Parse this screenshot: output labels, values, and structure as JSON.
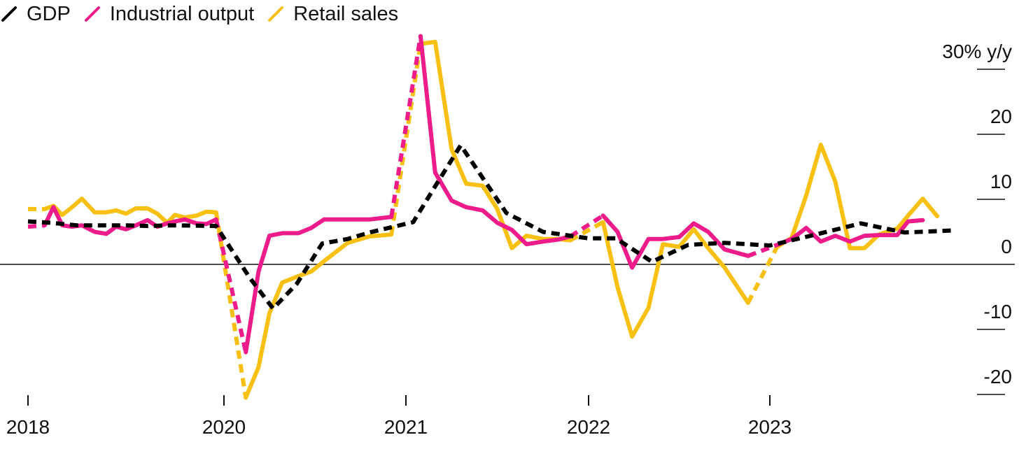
{
  "legend": {
    "items": [
      {
        "label": "GDP",
        "color": "#000000"
      },
      {
        "label": "Industrial output",
        "color": "#ee1c8b"
      },
      {
        "label": "Retail sales",
        "color": "#f7c012"
      }
    ]
  },
  "chart_data": {
    "type": "line",
    "title": "",
    "xlabel": "",
    "ylabel": "",
    "y_unit_label": "30% y/y",
    "yticks": [
      30,
      20,
      10,
      0,
      -10,
      -20
    ],
    "ytick_labels": [
      "30% y/y",
      "20",
      "10",
      "0",
      "-10",
      "-20"
    ],
    "ylim": [
      -22,
      32
    ],
    "xlim": [
      2018.0,
      2024.1
    ],
    "x_axis_note": "axis is compressed: 2018 to 2020 spans the same width as one year",
    "xticks": [
      {
        "label": "2018",
        "x": 2018.0
      },
      {
        "label": "2020",
        "x": 2020.0
      },
      {
        "label": "2021",
        "x": 2021.0
      },
      {
        "label": "2022",
        "x": 2022.0
      },
      {
        "label": "2023",
        "x": 2023.0
      }
    ],
    "legend_position": "top-left",
    "grid": false,
    "series": [
      {
        "name": "GDP",
        "color": "#000000",
        "style": "dashed",
        "points": [
          [
            2018.0,
            6.6
          ],
          [
            2018.23,
            6.4
          ],
          [
            2018.5,
            6.0
          ],
          [
            2019.0,
            6.0
          ],
          [
            2019.22,
            5.9
          ],
          [
            2019.48,
            6.0
          ],
          [
            2019.92,
            5.9
          ],
          [
            2020.14,
            -2.0
          ],
          [
            2020.27,
            -6.8
          ],
          [
            2020.4,
            -3.0
          ],
          [
            2020.54,
            3.2
          ],
          [
            2020.68,
            3.9
          ],
          [
            2020.8,
            4.9
          ],
          [
            2021.04,
            6.5
          ],
          [
            2021.16,
            12.0
          ],
          [
            2021.3,
            18.3
          ],
          [
            2021.55,
            7.9
          ],
          [
            2021.75,
            5.0
          ],
          [
            2022.0,
            4.0
          ],
          [
            2022.15,
            4.0
          ],
          [
            2022.35,
            0.4
          ],
          [
            2022.55,
            3.0
          ],
          [
            2022.75,
            3.3
          ],
          [
            2023.0,
            2.9
          ],
          [
            2023.24,
            4.5
          ],
          [
            2023.5,
            6.3
          ],
          [
            2023.74,
            4.9
          ],
          [
            2024.0,
            5.2
          ]
        ]
      },
      {
        "name": "Industrial output",
        "color": "#ee1c8b",
        "style": "solid",
        "dashed_segments": [
          [
            2018.0,
            2018.17
          ],
          [
            2019.92,
            2020.12
          ],
          [
            2020.92,
            2021.08
          ],
          [
            2021.9,
            2022.08
          ],
          [
            2022.88,
            2023.04
          ]
        ],
        "points": [
          [
            2018.0,
            5.8
          ],
          [
            2018.17,
            6.0
          ],
          [
            2018.26,
            8.8
          ],
          [
            2018.35,
            6.0
          ],
          [
            2018.45,
            5.8
          ],
          [
            2018.55,
            6.0
          ],
          [
            2018.68,
            5.0
          ],
          [
            2018.8,
            4.7
          ],
          [
            2018.9,
            5.8
          ],
          [
            2019.0,
            5.4
          ],
          [
            2019.1,
            6.0
          ],
          [
            2019.22,
            6.8
          ],
          [
            2019.32,
            5.8
          ],
          [
            2019.42,
            6.3
          ],
          [
            2019.5,
            6.6
          ],
          [
            2019.6,
            6.9
          ],
          [
            2019.72,
            6.3
          ],
          [
            2019.82,
            6.2
          ],
          [
            2019.92,
            6.9
          ],
          [
            2020.12,
            -13.5
          ],
          [
            2020.19,
            -1.1
          ],
          [
            2020.25,
            4.4
          ],
          [
            2020.32,
            4.8
          ],
          [
            2020.41,
            4.8
          ],
          [
            2020.48,
            5.6
          ],
          [
            2020.55,
            6.9
          ],
          [
            2020.68,
            6.9
          ],
          [
            2020.8,
            6.9
          ],
          [
            2020.92,
            7.3
          ],
          [
            2021.08,
            35.1
          ],
          [
            2021.16,
            14.1
          ],
          [
            2021.25,
            9.8
          ],
          [
            2021.33,
            8.8
          ],
          [
            2021.42,
            8.3
          ],
          [
            2021.5,
            6.4
          ],
          [
            2021.58,
            5.3
          ],
          [
            2021.66,
            3.1
          ],
          [
            2021.75,
            3.5
          ],
          [
            2021.83,
            3.8
          ],
          [
            2021.9,
            4.3
          ],
          [
            2022.08,
            7.5
          ],
          [
            2022.16,
            5.0
          ],
          [
            2022.24,
            -0.5
          ],
          [
            2022.33,
            3.9
          ],
          [
            2022.41,
            3.9
          ],
          [
            2022.5,
            4.2
          ],
          [
            2022.58,
            6.3
          ],
          [
            2022.66,
            5.0
          ],
          [
            2022.75,
            2.3
          ],
          [
            2022.88,
            1.3
          ],
          [
            2023.04,
            3.0
          ],
          [
            2023.12,
            3.9
          ],
          [
            2023.2,
            5.6
          ],
          [
            2023.28,
            3.5
          ],
          [
            2023.36,
            4.4
          ],
          [
            2023.44,
            3.5
          ],
          [
            2023.52,
            4.4
          ],
          [
            2023.6,
            4.5
          ],
          [
            2023.7,
            4.5
          ],
          [
            2023.76,
            6.6
          ],
          [
            2023.84,
            6.8
          ]
        ]
      },
      {
        "name": "Retail sales",
        "color": "#f7c012",
        "style": "solid",
        "dashed_segments": [
          [
            2018.0,
            2018.17
          ],
          [
            2019.92,
            2020.12
          ],
          [
            2020.92,
            2021.08
          ],
          [
            2021.9,
            2022.08
          ],
          [
            2022.88,
            2023.04
          ]
        ],
        "points": [
          [
            2018.0,
            8.5
          ],
          [
            2018.17,
            8.5
          ],
          [
            2018.26,
            9.0
          ],
          [
            2018.35,
            7.6
          ],
          [
            2018.45,
            8.8
          ],
          [
            2018.55,
            10.1
          ],
          [
            2018.68,
            8.0
          ],
          [
            2018.8,
            8.0
          ],
          [
            2018.9,
            8.3
          ],
          [
            2019.0,
            7.8
          ],
          [
            2019.1,
            8.6
          ],
          [
            2019.22,
            8.6
          ],
          [
            2019.32,
            7.8
          ],
          [
            2019.42,
            6.4
          ],
          [
            2019.5,
            7.6
          ],
          [
            2019.6,
            7.2
          ],
          [
            2019.72,
            7.5
          ],
          [
            2019.82,
            8.1
          ],
          [
            2019.92,
            8.0
          ],
          [
            2020.12,
            -20.5
          ],
          [
            2020.19,
            -15.8
          ],
          [
            2020.25,
            -7.5
          ],
          [
            2020.32,
            -2.8
          ],
          [
            2020.41,
            -1.8
          ],
          [
            2020.48,
            -1.1
          ],
          [
            2020.55,
            0.5
          ],
          [
            2020.68,
            3.3
          ],
          [
            2020.8,
            4.3
          ],
          [
            2020.92,
            4.6
          ],
          [
            2021.08,
            33.9
          ],
          [
            2021.16,
            34.2
          ],
          [
            2021.25,
            17.7
          ],
          [
            2021.33,
            12.4
          ],
          [
            2021.42,
            12.1
          ],
          [
            2021.5,
            8.5
          ],
          [
            2021.58,
            2.5
          ],
          [
            2021.66,
            4.4
          ],
          [
            2021.75,
            3.9
          ],
          [
            2021.83,
            3.9
          ],
          [
            2021.9,
            3.7
          ],
          [
            2022.08,
            6.5
          ],
          [
            2022.16,
            -3.5
          ],
          [
            2022.24,
            -11.1
          ],
          [
            2022.33,
            -6.7
          ],
          [
            2022.41,
            3.1
          ],
          [
            2022.5,
            2.7
          ],
          [
            2022.58,
            5.4
          ],
          [
            2022.66,
            2.5
          ],
          [
            2022.75,
            -0.5
          ],
          [
            2022.88,
            -5.9
          ],
          [
            2023.04,
            2.7
          ],
          [
            2023.12,
            4.1
          ],
          [
            2023.2,
            10.6
          ],
          [
            2023.28,
            18.4
          ],
          [
            2023.36,
            12.7
          ],
          [
            2023.44,
            2.5
          ],
          [
            2023.52,
            2.5
          ],
          [
            2023.6,
            4.6
          ],
          [
            2023.7,
            5.5
          ],
          [
            2023.76,
            7.5
          ],
          [
            2023.84,
            10.1
          ],
          [
            2023.92,
            7.4
          ]
        ]
      }
    ]
  }
}
